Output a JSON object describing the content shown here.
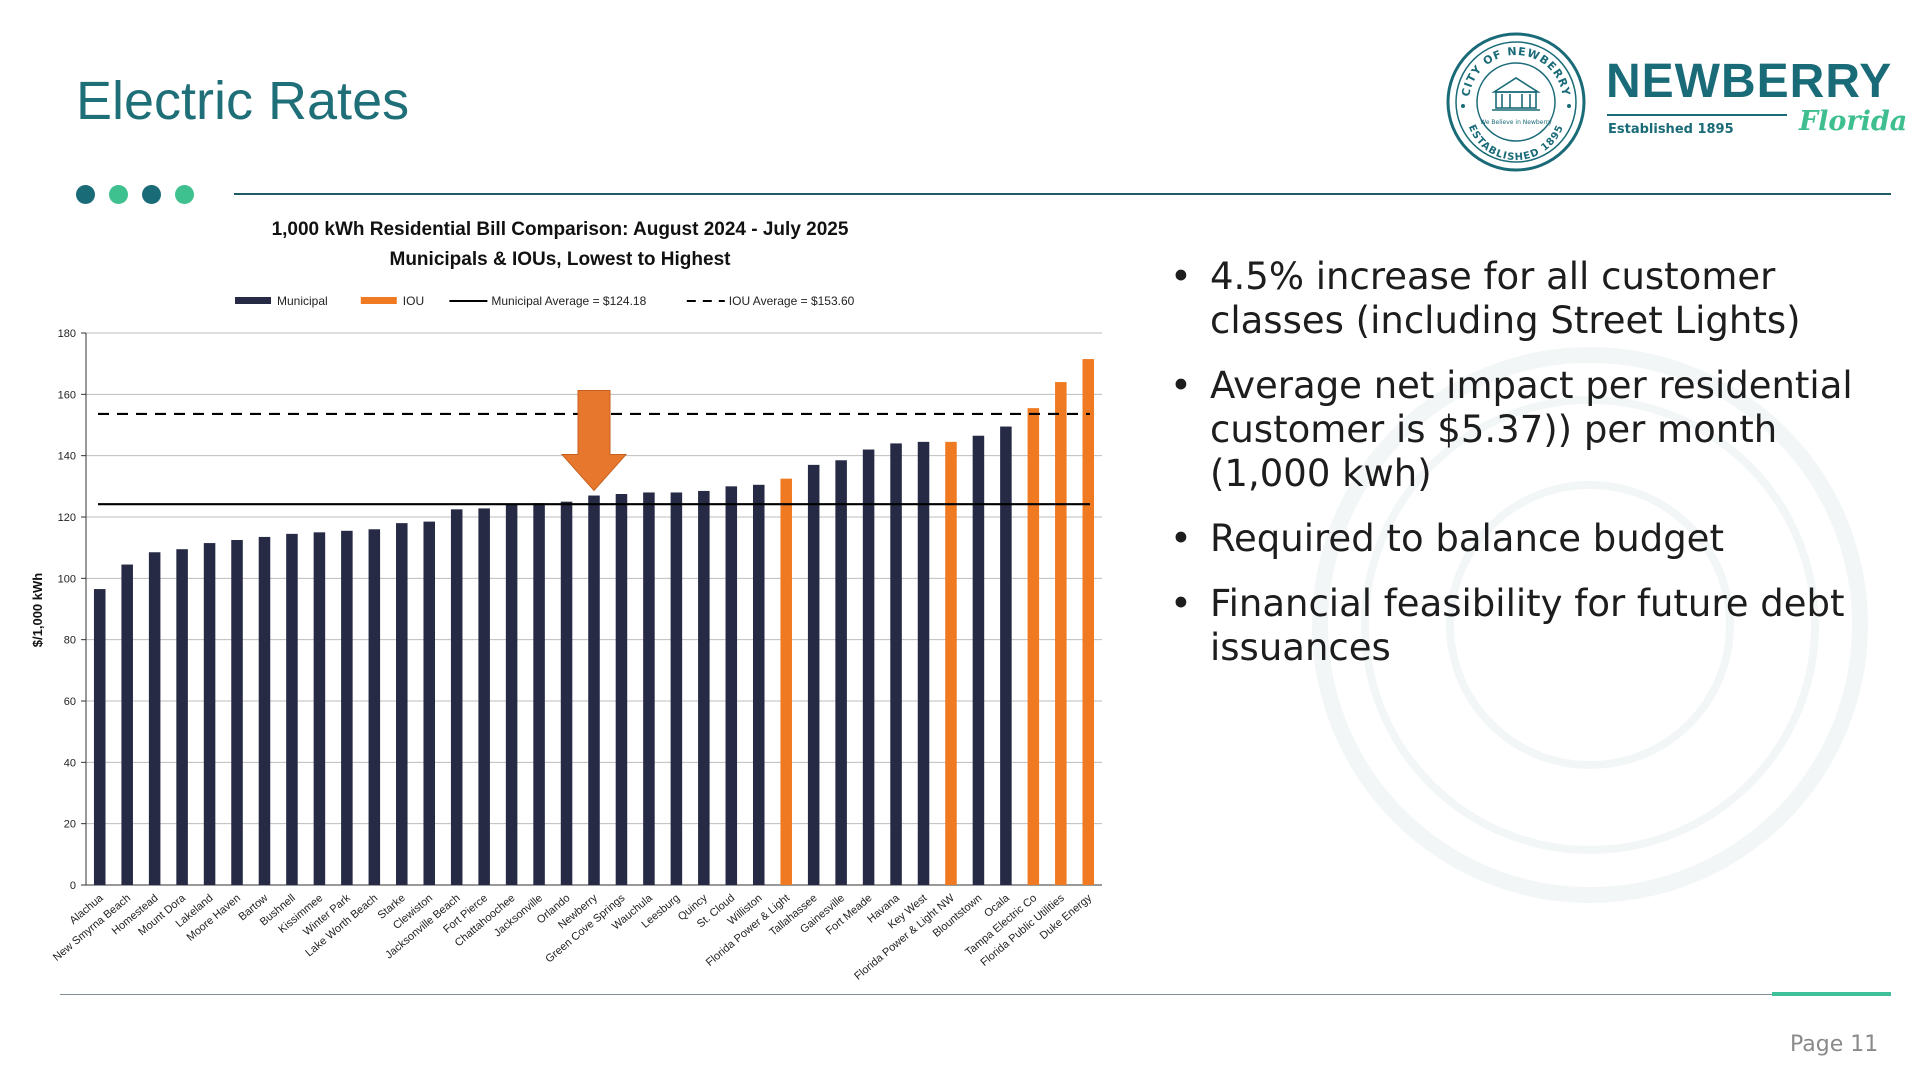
{
  "slide": {
    "title": "Electric Rates",
    "page": "Page 11"
  },
  "logo": {
    "name": "NEWBERRY",
    "established": "Established 1895",
    "state": "Florida",
    "seal_top": "CITY OF NEWBERRY",
    "seal_bottom": "ESTABLISHED 1895",
    "seal_motto": "We Believe in Newberry"
  },
  "bullets": [
    "4.5% increase for all customer classes (including Street Lights)",
    "Average net impact per residential customer is $5.37)) per month (1,000 kwh)",
    "Required to balance budget",
    "Financial feasibility for future debt issuances"
  ],
  "colors": {
    "municipal": "#262a45",
    "iou": "#f07a22",
    "arrow": "#e8772e",
    "accent": "#1f6f78"
  },
  "chart_data": {
    "type": "bar",
    "title": "1,000 kWh Residential Bill Comparison: August 2024 - July 2025",
    "subtitle": "Municipals & IOUs, Lowest to Highest",
    "xlabel": "",
    "ylabel": "$/1,000 kWh",
    "ylim": [
      0,
      180
    ],
    "yticks": [
      0,
      20,
      40,
      60,
      80,
      100,
      120,
      140,
      160,
      180
    ],
    "legend": [
      {
        "label": "Municipal",
        "kind": "bar",
        "series": "Municipal"
      },
      {
        "label": "IOU",
        "kind": "bar",
        "series": "IOU"
      },
      {
        "label": "Municipal Average = $124.18",
        "kind": "solid-line"
      },
      {
        "label": "IOU Average = $153.60",
        "kind": "dashed-line"
      }
    ],
    "reference_lines": [
      {
        "name": "Municipal Average",
        "value": 124.18,
        "style": "solid"
      },
      {
        "name": "IOU Average",
        "value": 153.6,
        "style": "dashed"
      }
    ],
    "highlight": {
      "category": "Newberry",
      "marker": "down-arrow"
    },
    "categories": [
      "Alachua",
      "New Smyrna Beach",
      "Homestead",
      "Mount Dora",
      "Lakeland",
      "Moore Haven",
      "Bartow",
      "Bushnell",
      "Kissimmee",
      "Winter Park",
      "Lake Worth Beach",
      "Starke",
      "Clewiston",
      "Jacksonville Beach",
      "Fort Pierce",
      "Chattahoochee",
      "Jacksonville",
      "Orlando",
      "Newberry",
      "Green Cove Springs",
      "Wauchula",
      "Leesburg",
      "Quincy",
      "St. Cloud",
      "Williston",
      "Florida Power & Light",
      "Tallahassee",
      "Gainesville",
      "Fort Meade",
      "Havana",
      "Key West",
      "Florida Power & Light NW",
      "Blountstown",
      "Ocala",
      "Tampa Electric Co",
      "Florida Public Utilities",
      "Duke Energy"
    ],
    "values": [
      96.5,
      104.5,
      108.5,
      109.5,
      111.5,
      112.5,
      113.5,
      114.5,
      115,
      115.5,
      116,
      118,
      118.5,
      122.5,
      122.8,
      124,
      124.5,
      125,
      127,
      127.5,
      128,
      128,
      128.5,
      130,
      130.5,
      132.5,
      137,
      138.5,
      142,
      144,
      144.5,
      144.5,
      146.5,
      149.5,
      155.5,
      164,
      171.5
    ],
    "series_type": [
      "Municipal",
      "Municipal",
      "Municipal",
      "Municipal",
      "Municipal",
      "Municipal",
      "Municipal",
      "Municipal",
      "Municipal",
      "Municipal",
      "Municipal",
      "Municipal",
      "Municipal",
      "Municipal",
      "Municipal",
      "Municipal",
      "Municipal",
      "Municipal",
      "Municipal",
      "Municipal",
      "Municipal",
      "Municipal",
      "Municipal",
      "Municipal",
      "Municipal",
      "IOU",
      "Municipal",
      "Municipal",
      "Municipal",
      "Municipal",
      "Municipal",
      "IOU",
      "Municipal",
      "Municipal",
      "IOU",
      "IOU",
      "IOU"
    ]
  }
}
